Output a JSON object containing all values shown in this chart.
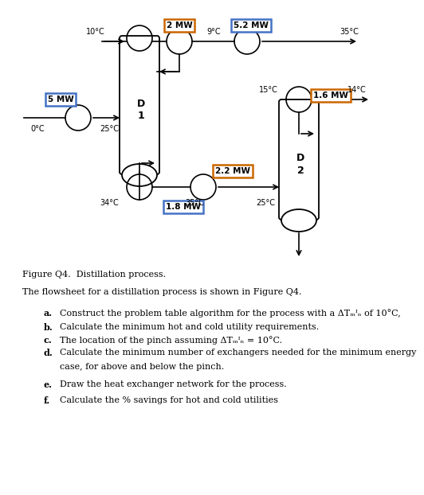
{
  "bg_color": "#ffffff",
  "orange_color": "#cc6600",
  "blue_color": "#4472c4",
  "black": "#000000",
  "title": "Figure Q4.  Distillation process.",
  "intro": "The flowsheet for a distillation process is shown in Figure Q4.",
  "q_a": "Construct the problem table algorithm for the process with a ΔT",
  "q_a2": "min",
  "q_a3": " of 10°C,",
  "q_b": "Calculate the minimum hot and cold utility requirements.",
  "q_c1": "The location of the pinch assuming ΔT",
  "q_c2": "min",
  "q_c3": " = 10°C.",
  "q_d": "Calculate the minimum number of exchangers needed for the minimum energy",
  "q_d2": "case, for above and below the pinch.",
  "q_e": "Draw the heat exchanger network for the process.",
  "q_f": "Calculate the % savings for hot and cold utilities"
}
